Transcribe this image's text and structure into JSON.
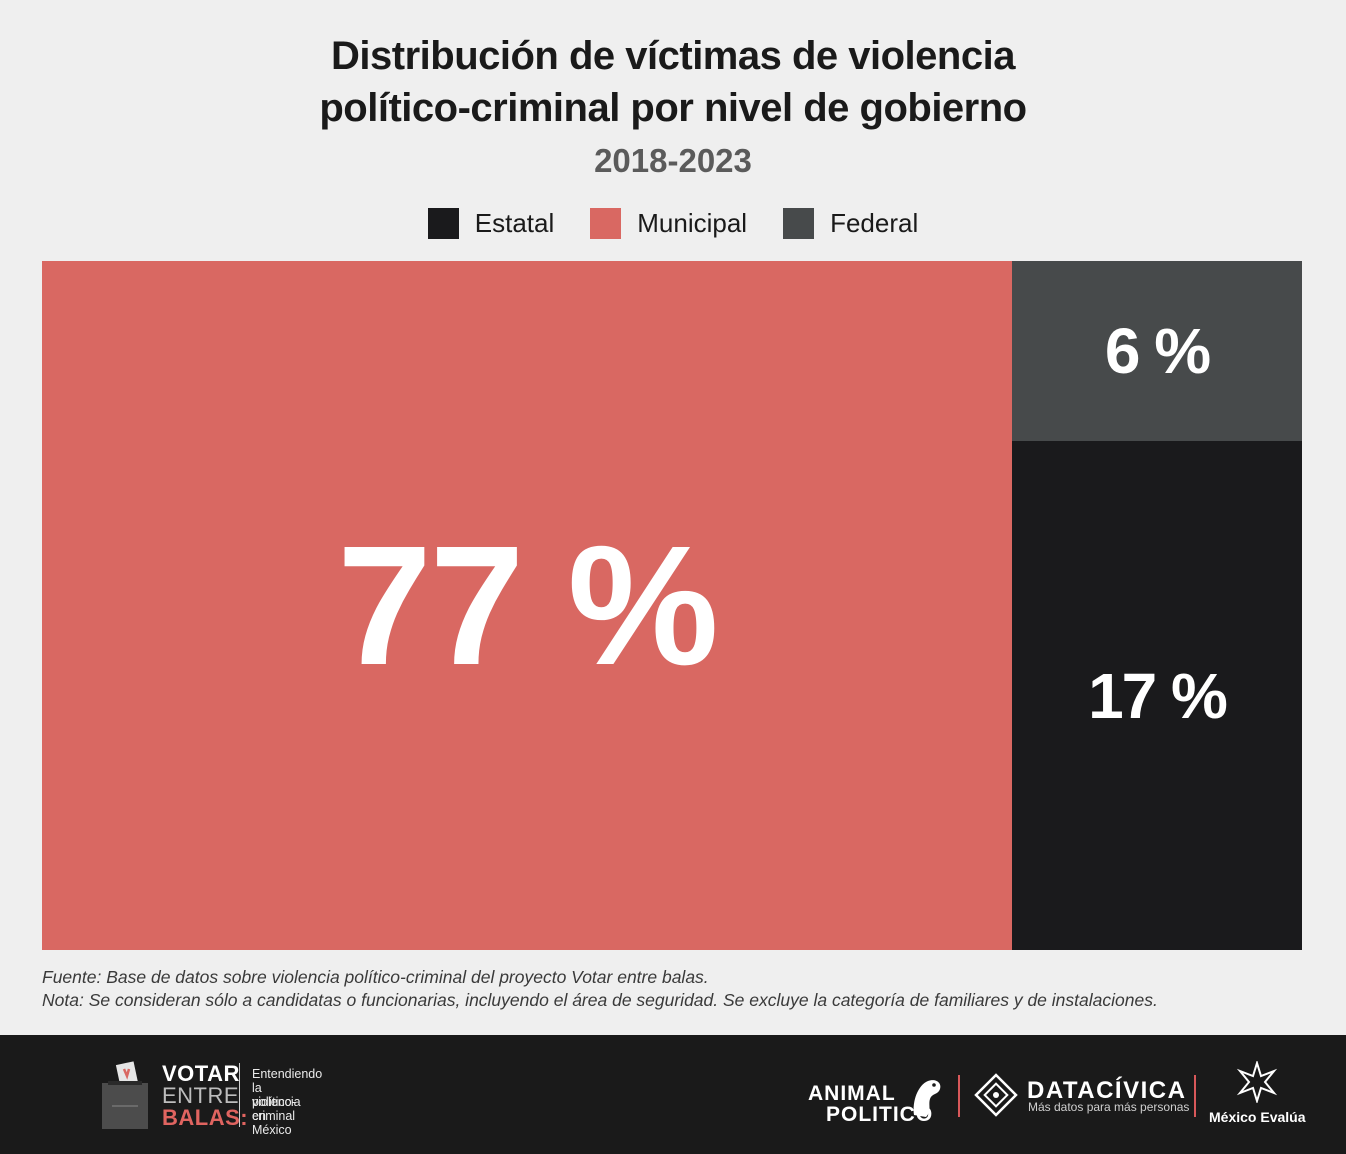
{
  "header": {
    "title_line1": "Distribución de víctimas de violencia",
    "title_line2": "político-criminal por nivel de gobierno",
    "subtitle": "2018-2023"
  },
  "legend": [
    {
      "label": "Estatal",
      "color": "#1a1a1c"
    },
    {
      "label": "Municipal",
      "color": "#d96862"
    },
    {
      "label": "Federal",
      "color": "#474a4b"
    }
  ],
  "chart_data": {
    "type": "treemap",
    "title": "Distribución de víctimas de violencia político-criminal por nivel de gobierno",
    "subtitle": "2018-2023",
    "unit": "%",
    "segments": [
      {
        "name": "Municipal",
        "value": 77,
        "label": "77 %",
        "color": "#d96862"
      },
      {
        "name": "Federal",
        "value": 6,
        "label": "6 %",
        "color": "#474a4b"
      },
      {
        "name": "Estatal",
        "value": 17,
        "label": "17 %",
        "color": "#1a1a1c"
      }
    ]
  },
  "notes": {
    "source": "Fuente: Base de datos sobre violencia político-criminal del proyecto Votar entre balas.",
    "note": "Nota: Se consideran sólo a candidatas o funcionarias, incluyendo el área de seguridad. Se excluye la categoría de familiares y de instalaciones."
  },
  "footer": {
    "votar": {
      "line1": "VOTAR",
      "line2": "ENTRE",
      "line3": "BALAS:"
    },
    "tagline": [
      "Entendiendo",
      "la violencia",
      "político-criminal",
      "en México"
    ],
    "animal_politico": {
      "line1": "ANIMAL",
      "line2": "POLITICO"
    },
    "datacivica": {
      "name": "DATACÍVICA",
      "tagline": "Más datos para más personas"
    },
    "mexico_evalua": "México Evalúa"
  }
}
